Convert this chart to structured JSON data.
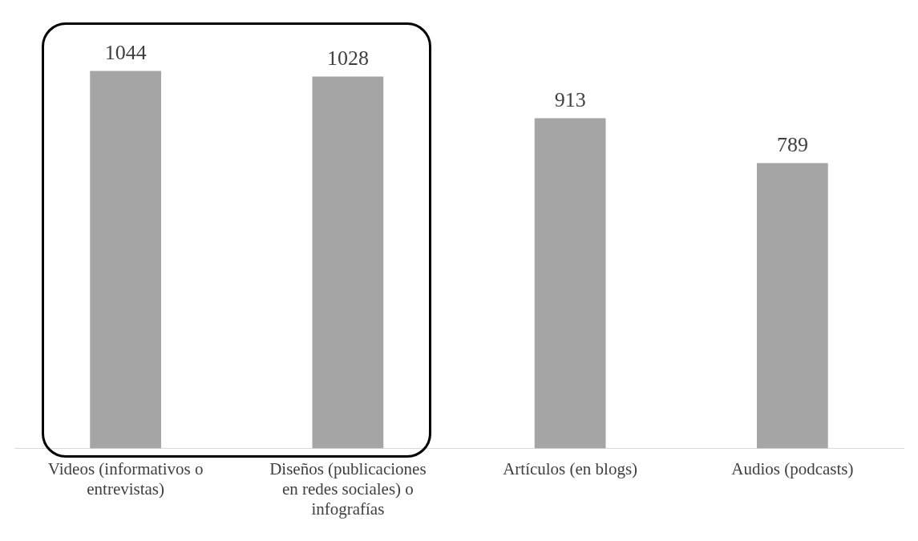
{
  "chart_data": {
    "type": "bar",
    "categories": [
      "Videos (informativos o entrevistas)",
      "Diseños (publicaciones en redes sociales) o infografías",
      "Artículos (en blogs)",
      "Audios (podcasts)"
    ],
    "values": [
      1044,
      1028,
      913,
      789
    ],
    "color": "#a5a5a5",
    "data_labels": true,
    "grid": false,
    "legend": false
  }
}
